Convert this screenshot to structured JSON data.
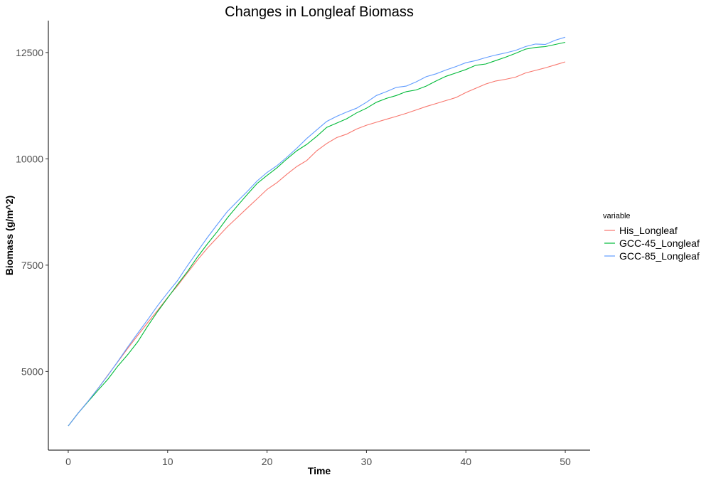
{
  "chart_data": {
    "type": "line",
    "title": "Changes in Longleaf Biomass",
    "xlabel": "Time",
    "ylabel": "Biomass (g/m^2)",
    "xlim": [
      -2,
      52.5
    ],
    "ylim": [
      3150,
      13250
    ],
    "xticks": [
      0,
      10,
      20,
      30,
      40,
      50
    ],
    "yticks": [
      5000,
      7500,
      10000,
      12500
    ],
    "grid": false,
    "legend": {
      "title": "variable",
      "placement": "right"
    },
    "series": [
      {
        "name": "His_Longleaf",
        "color": "#F8766D",
        "x": [
          0,
          1,
          2,
          3,
          4,
          5,
          6,
          7,
          8,
          9,
          10,
          11,
          12,
          13,
          14,
          15,
          16,
          17,
          18,
          19,
          20,
          21,
          22,
          23,
          24,
          25,
          26,
          27,
          28,
          29,
          30,
          31,
          32,
          33,
          34,
          35,
          36,
          37,
          38,
          39,
          40,
          41,
          42,
          43,
          44,
          45,
          46,
          47,
          48,
          49,
          50
        ],
        "y": [
          3720,
          4020,
          4300,
          4600,
          4920,
          5230,
          5550,
          5850,
          6150,
          6440,
          6740,
          7020,
          7320,
          7620,
          7900,
          8150,
          8400,
          8620,
          8840,
          9060,
          9280,
          9440,
          9640,
          9820,
          9960,
          10190,
          10360,
          10500,
          10580,
          10700,
          10790,
          10860,
          10930,
          11000,
          11070,
          11150,
          11230,
          11300,
          11370,
          11440,
          11560,
          11660,
          11760,
          11830,
          11870,
          11920,
          12020,
          12080,
          12140,
          12210,
          12280
        ]
      },
      {
        "name": "GCC-45_Longleaf",
        "color": "#00BA38",
        "x": [
          0,
          1,
          2,
          3,
          4,
          5,
          6,
          7,
          8,
          9,
          10,
          11,
          12,
          13,
          14,
          15,
          16,
          17,
          18,
          19,
          20,
          21,
          22,
          23,
          24,
          25,
          26,
          27,
          28,
          29,
          30,
          31,
          32,
          33,
          34,
          35,
          36,
          37,
          38,
          39,
          40,
          41,
          42,
          43,
          44,
          45,
          46,
          47,
          48,
          49,
          50
        ],
        "y": [
          3720,
          4020,
          4290,
          4560,
          4820,
          5130,
          5400,
          5700,
          6070,
          6410,
          6730,
          7050,
          7350,
          7690,
          8000,
          8290,
          8610,
          8890,
          9160,
          9420,
          9610,
          9790,
          10000,
          10190,
          10340,
          10530,
          10740,
          10840,
          10940,
          11080,
          11190,
          11330,
          11420,
          11490,
          11580,
          11620,
          11710,
          11830,
          11940,
          12020,
          12100,
          12200,
          12230,
          12310,
          12390,
          12480,
          12580,
          12620,
          12640,
          12690,
          12740
        ]
      },
      {
        "name": "GCC-85_Longleaf",
        "color": "#619CFF",
        "x": [
          0,
          1,
          2,
          3,
          4,
          5,
          6,
          7,
          8,
          9,
          10,
          11,
          12,
          13,
          14,
          15,
          16,
          17,
          18,
          19,
          20,
          21,
          22,
          23,
          24,
          25,
          26,
          27,
          28,
          29,
          30,
          31,
          32,
          33,
          34,
          35,
          36,
          37,
          38,
          39,
          40,
          41,
          42,
          43,
          44,
          45,
          46,
          47,
          48,
          49,
          50
        ],
        "y": [
          3720,
          4020,
          4300,
          4600,
          4910,
          5240,
          5580,
          5900,
          6220,
          6550,
          6850,
          7140,
          7490,
          7820,
          8150,
          8460,
          8760,
          9000,
          9230,
          9480,
          9680,
          9840,
          10040,
          10250,
          10480,
          10680,
          10880,
          11000,
          11100,
          11190,
          11330,
          11490,
          11580,
          11680,
          11710,
          11810,
          11930,
          12000,
          12090,
          12170,
          12260,
          12310,
          12380,
          12440,
          12490,
          12550,
          12640,
          12700,
          12690,
          12790,
          12860
        ]
      }
    ]
  }
}
